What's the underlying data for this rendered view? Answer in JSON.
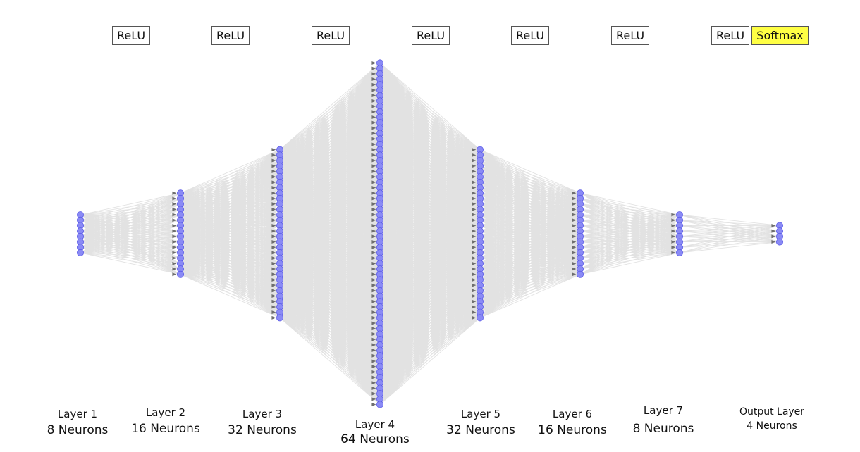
{
  "activations": [
    {
      "name": "relu-1",
      "label": "ReLU",
      "style": "plain"
    },
    {
      "name": "relu-2",
      "label": "ReLU",
      "style": "plain"
    },
    {
      "name": "relu-3",
      "label": "ReLU",
      "style": "plain"
    },
    {
      "name": "relu-4",
      "label": "ReLU",
      "style": "plain"
    },
    {
      "name": "relu-5",
      "label": "ReLU",
      "style": "plain"
    },
    {
      "name": "relu-6",
      "label": "ReLU",
      "style": "plain"
    },
    {
      "name": "relu-7",
      "label": "ReLU",
      "style": "plain"
    },
    {
      "name": "softmax",
      "label": "Softmax",
      "style": "highlight"
    }
  ],
  "layers": [
    {
      "title": "Layer 1",
      "neurons_label": "8 Neurons",
      "neurons": 8
    },
    {
      "title": "Layer 2",
      "neurons_label": "16 Neurons",
      "neurons": 16
    },
    {
      "title": "Layer 3",
      "neurons_label": "32 Neurons",
      "neurons": 32
    },
    {
      "title": "Layer 4",
      "neurons_label": "64 Neurons",
      "neurons": 64
    },
    {
      "title": "Layer 5",
      "neurons_label": "32 Neurons",
      "neurons": 32
    },
    {
      "title": "Layer 6",
      "neurons_label": "16 Neurons",
      "neurons": 16
    },
    {
      "title": "Layer 7",
      "neurons_label": "8 Neurons",
      "neurons": 8
    },
    {
      "title": "Output Layer",
      "neurons_label": "4 Neurons",
      "neurons": 4
    }
  ],
  "colors": {
    "neuron_fill": "#8a8af5",
    "neuron_stroke": "#5b5be8",
    "connection": "#7a7a7a",
    "activation_highlight": "#ffff44"
  }
}
